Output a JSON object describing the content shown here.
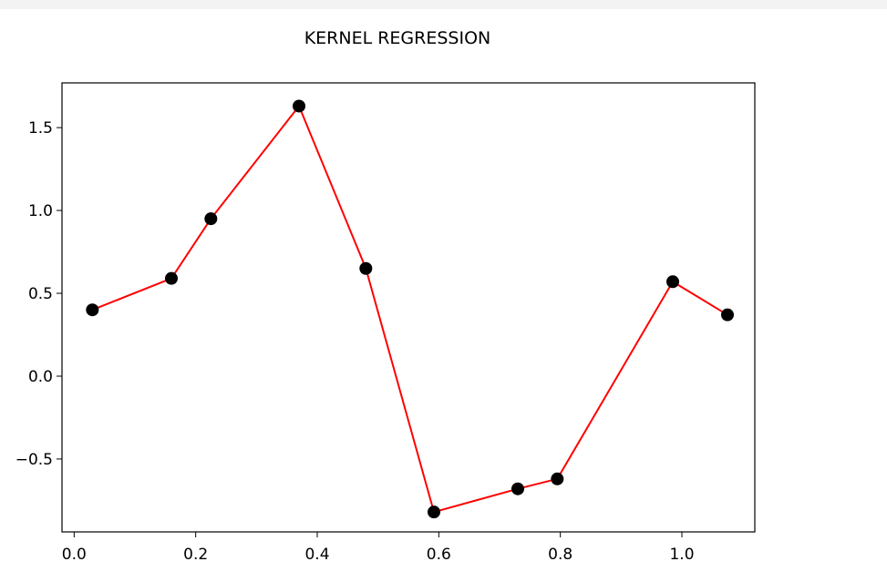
{
  "chart_data": {
    "type": "line",
    "title": "KERNEL REGRESSION",
    "xlabel": "",
    "ylabel": "",
    "xlim": [
      -0.02,
      1.12
    ],
    "ylim": [
      -0.94,
      1.77
    ],
    "xticks": [
      0.0,
      0.2,
      0.4,
      0.6,
      0.8,
      1.0
    ],
    "xtick_labels": [
      "0.0",
      "0.2",
      "0.4",
      "0.6",
      "0.8",
      "1.0"
    ],
    "yticks": [
      -0.5,
      0.0,
      0.5,
      1.0,
      1.5
    ],
    "ytick_labels": [
      "−0.5",
      "0.0",
      "0.5",
      "1.0",
      "1.5"
    ],
    "grid": false,
    "series": [
      {
        "style": "scatter",
        "color": "#000000",
        "x": [
          0.03,
          0.16,
          0.225,
          0.37,
          0.48,
          0.592,
          0.73,
          0.795,
          0.985,
          1.075
        ],
        "y": [
          0.4,
          0.59,
          0.95,
          1.63,
          0.65,
          -0.82,
          -0.68,
          -0.62,
          0.57,
          0.37
        ]
      },
      {
        "style": "line",
        "color": "#ff0000",
        "x": [
          0.03,
          0.16,
          0.225,
          0.37,
          0.48,
          0.592,
          0.73,
          0.795,
          0.985,
          1.075
        ],
        "y": [
          0.4,
          0.59,
          0.95,
          1.63,
          0.65,
          -0.82,
          -0.68,
          -0.62,
          0.57,
          0.37
        ]
      }
    ]
  }
}
